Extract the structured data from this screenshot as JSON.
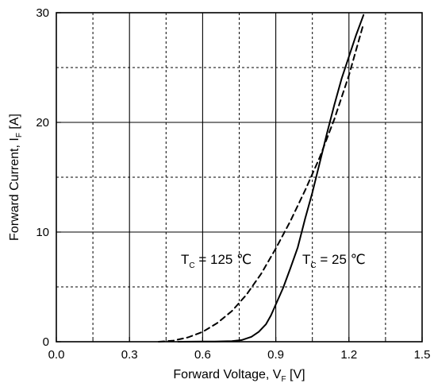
{
  "chart_data": {
    "type": "line",
    "title": "",
    "xlabel": {
      "main": "Forward Voltage, V",
      "sub": "F",
      "unit": " [V]"
    },
    "ylabel": {
      "main": "Forward Current, I",
      "sub": "F",
      "unit": " [A]"
    },
    "xlim": [
      0,
      1.5
    ],
    "ylim": [
      0,
      30
    ],
    "x_ticks": [
      0.0,
      0.3,
      0.6,
      0.9,
      1.2,
      1.5
    ],
    "x_tick_labels": [
      "0.0",
      "0.3",
      "0.6",
      "0.9",
      "1.2",
      "1.5"
    ],
    "y_ticks": [
      0,
      10,
      20,
      30
    ],
    "y_tick_labels": [
      "0",
      "10",
      "20",
      "30"
    ],
    "grid": {
      "major_x": [
        0.3,
        0.6,
        0.9,
        1.2
      ],
      "minor_x": [
        0.15,
        0.45,
        0.75,
        1.05,
        1.35
      ],
      "major_y": [
        10,
        20
      ],
      "minor_y": [
        5,
        15,
        25
      ]
    },
    "series": [
      {
        "style": "solid",
        "color": "#000000",
        "points": [
          [
            0.5,
            0
          ],
          [
            0.65,
            0.02
          ],
          [
            0.72,
            0.05
          ],
          [
            0.76,
            0.15
          ],
          [
            0.8,
            0.45
          ],
          [
            0.83,
            0.9
          ],
          [
            0.86,
            1.6
          ],
          [
            0.88,
            2.4
          ],
          [
            0.9,
            3.4
          ],
          [
            0.93,
            4.9
          ],
          [
            0.96,
            6.7
          ],
          [
            0.99,
            8.6
          ],
          [
            1.02,
            11.2
          ],
          [
            1.05,
            13.6
          ],
          [
            1.08,
            16.3
          ],
          [
            1.11,
            19.0
          ],
          [
            1.14,
            21.6
          ],
          [
            1.17,
            24.0
          ],
          [
            1.2,
            26.0
          ],
          [
            1.23,
            28.0
          ],
          [
            1.26,
            29.8
          ]
        ]
      },
      {
        "style": "dashed",
        "color": "#000000",
        "points": [
          [
            0.42,
            0
          ],
          [
            0.48,
            0.1
          ],
          [
            0.54,
            0.4
          ],
          [
            0.6,
            0.9
          ],
          [
            0.66,
            1.7
          ],
          [
            0.72,
            2.8
          ],
          [
            0.78,
            4.3
          ],
          [
            0.84,
            6.2
          ],
          [
            0.9,
            8.5
          ],
          [
            0.96,
            11.0
          ],
          [
            1.02,
            13.8
          ],
          [
            1.08,
            16.8
          ],
          [
            1.14,
            20.3
          ],
          [
            1.2,
            24.3
          ],
          [
            1.26,
            29.0
          ]
        ]
      }
    ],
    "annotations": [
      {
        "main": "T",
        "sub": "C",
        "rest": " = 125 ℃"
      },
      {
        "main": "T",
        "sub": "C",
        "rest": " = 25 ℃"
      }
    ]
  }
}
